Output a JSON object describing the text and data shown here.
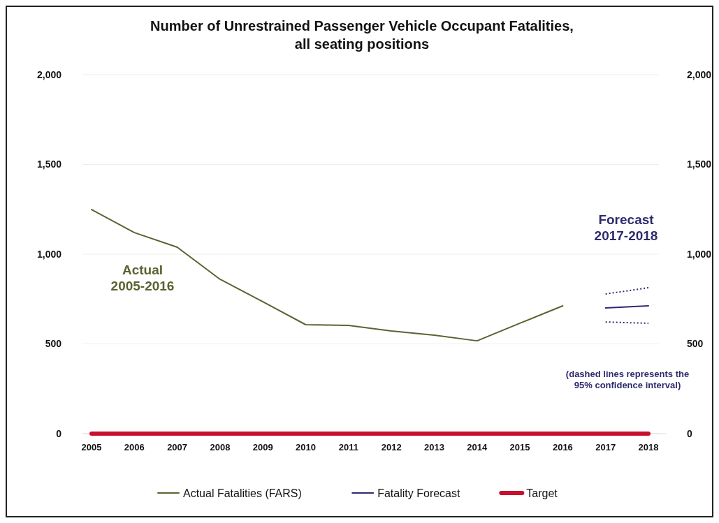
{
  "chart_data": {
    "type": "line",
    "title": "Number of Unrestrained Passenger Vehicle Occupant Fatalities,\nall seating positions",
    "categories": [
      "2005",
      "2006",
      "2007",
      "2008",
      "2009",
      "2010",
      "2011",
      "2012",
      "2013",
      "2014",
      "2015",
      "2016",
      "2017",
      "2018"
    ],
    "series": [
      {
        "name": "Actual Fatalities (FARS)",
        "color": "#5a6331",
        "values": [
          1249,
          1120,
          1039,
          860,
          735,
          607,
          603,
          572,
          549,
          517,
          615,
          712,
          null,
          null
        ]
      },
      {
        "name": "Fatality Forecast",
        "color": "#2e2a6e",
        "values": [
          null,
          null,
          null,
          null,
          null,
          null,
          null,
          null,
          null,
          null,
          null,
          null,
          700,
          712
        ]
      },
      {
        "color": "#2e2a6e",
        "line_style": "dotted",
        "values": [
          null,
          null,
          null,
          null,
          null,
          null,
          null,
          null,
          null,
          null,
          null,
          null,
          622,
          615
        ]
      },
      {
        "color": "#2e2a6e",
        "line_style": "dotted",
        "values": [
          null,
          null,
          null,
          null,
          null,
          null,
          null,
          null,
          null,
          null,
          null,
          null,
          778,
          813
        ]
      },
      {
        "name": "Target",
        "color": "#c8102e",
        "values": [
          0,
          0,
          0,
          0,
          0,
          0,
          0,
          0,
          0,
          0,
          0,
          0,
          0,
          0
        ]
      }
    ],
    "ylim": [
      0,
      2000
    ],
    "yticks": [
      {
        "value": 0,
        "label": "0"
      },
      {
        "value": 500,
        "label": "500"
      },
      {
        "value": 1000,
        "label": "1,000"
      },
      {
        "value": 1500,
        "label": "1,500"
      },
      {
        "value": 2000,
        "label": "2,000"
      }
    ],
    "y2lim": [
      0,
      2000
    ],
    "y2ticks": [
      {
        "value": 0,
        "label": "0"
      },
      {
        "value": 500,
        "label": "500"
      },
      {
        "value": 1000,
        "label": "1,000"
      },
      {
        "value": 1500,
        "label": "1,500"
      },
      {
        "value": 2000,
        "label": "2,000"
      }
    ],
    "grid": "y",
    "legend": "bottom",
    "marker": "none",
    "line_style": "solid",
    "annotations": [
      "Actual\n2005-2016",
      "Forecast\n2017-2018",
      "(dashed lines represents the\n95% confidence interval)"
    ]
  }
}
